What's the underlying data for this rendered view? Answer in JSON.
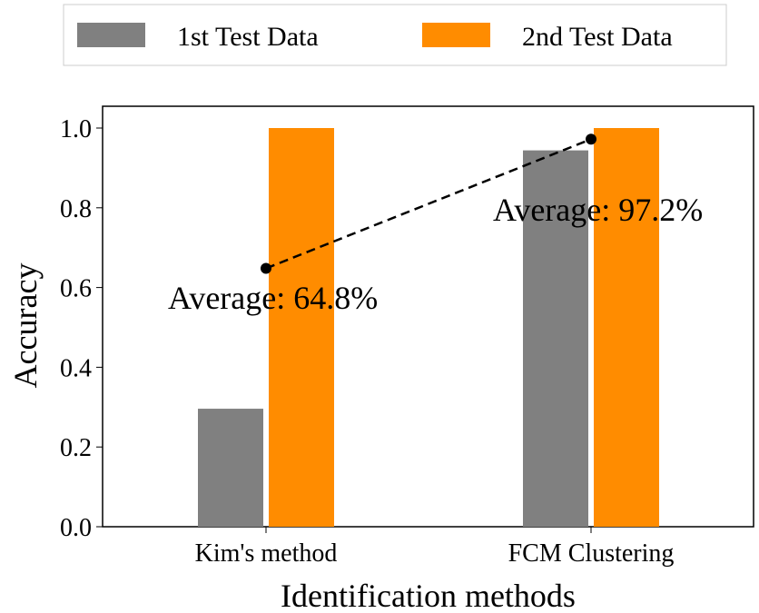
{
  "chart_data": {
    "type": "bar",
    "xlabel": "Identification methods",
    "ylabel": "Accuracy",
    "categories": [
      "Kim's method",
      "FCM Clustering"
    ],
    "series": [
      {
        "name": "1st Test Data",
        "values": [
          0.296,
          0.944
        ],
        "color": "#808080"
      },
      {
        "name": "2nd Test Data",
        "values": [
          1.0,
          1.0
        ],
        "color": "#ff8c00"
      }
    ],
    "average_line": {
      "values": [
        0.648,
        0.972
      ],
      "labels": [
        "Average: 64.8%",
        "Average: 97.2%"
      ],
      "style": "dashed",
      "color": "#000000"
    },
    "ylim": [
      0,
      1.08
    ],
    "yticks": [
      "0.0",
      "0.2",
      "0.4",
      "0.6",
      "0.8",
      "1.0"
    ],
    "grid": false,
    "legend": "top"
  }
}
